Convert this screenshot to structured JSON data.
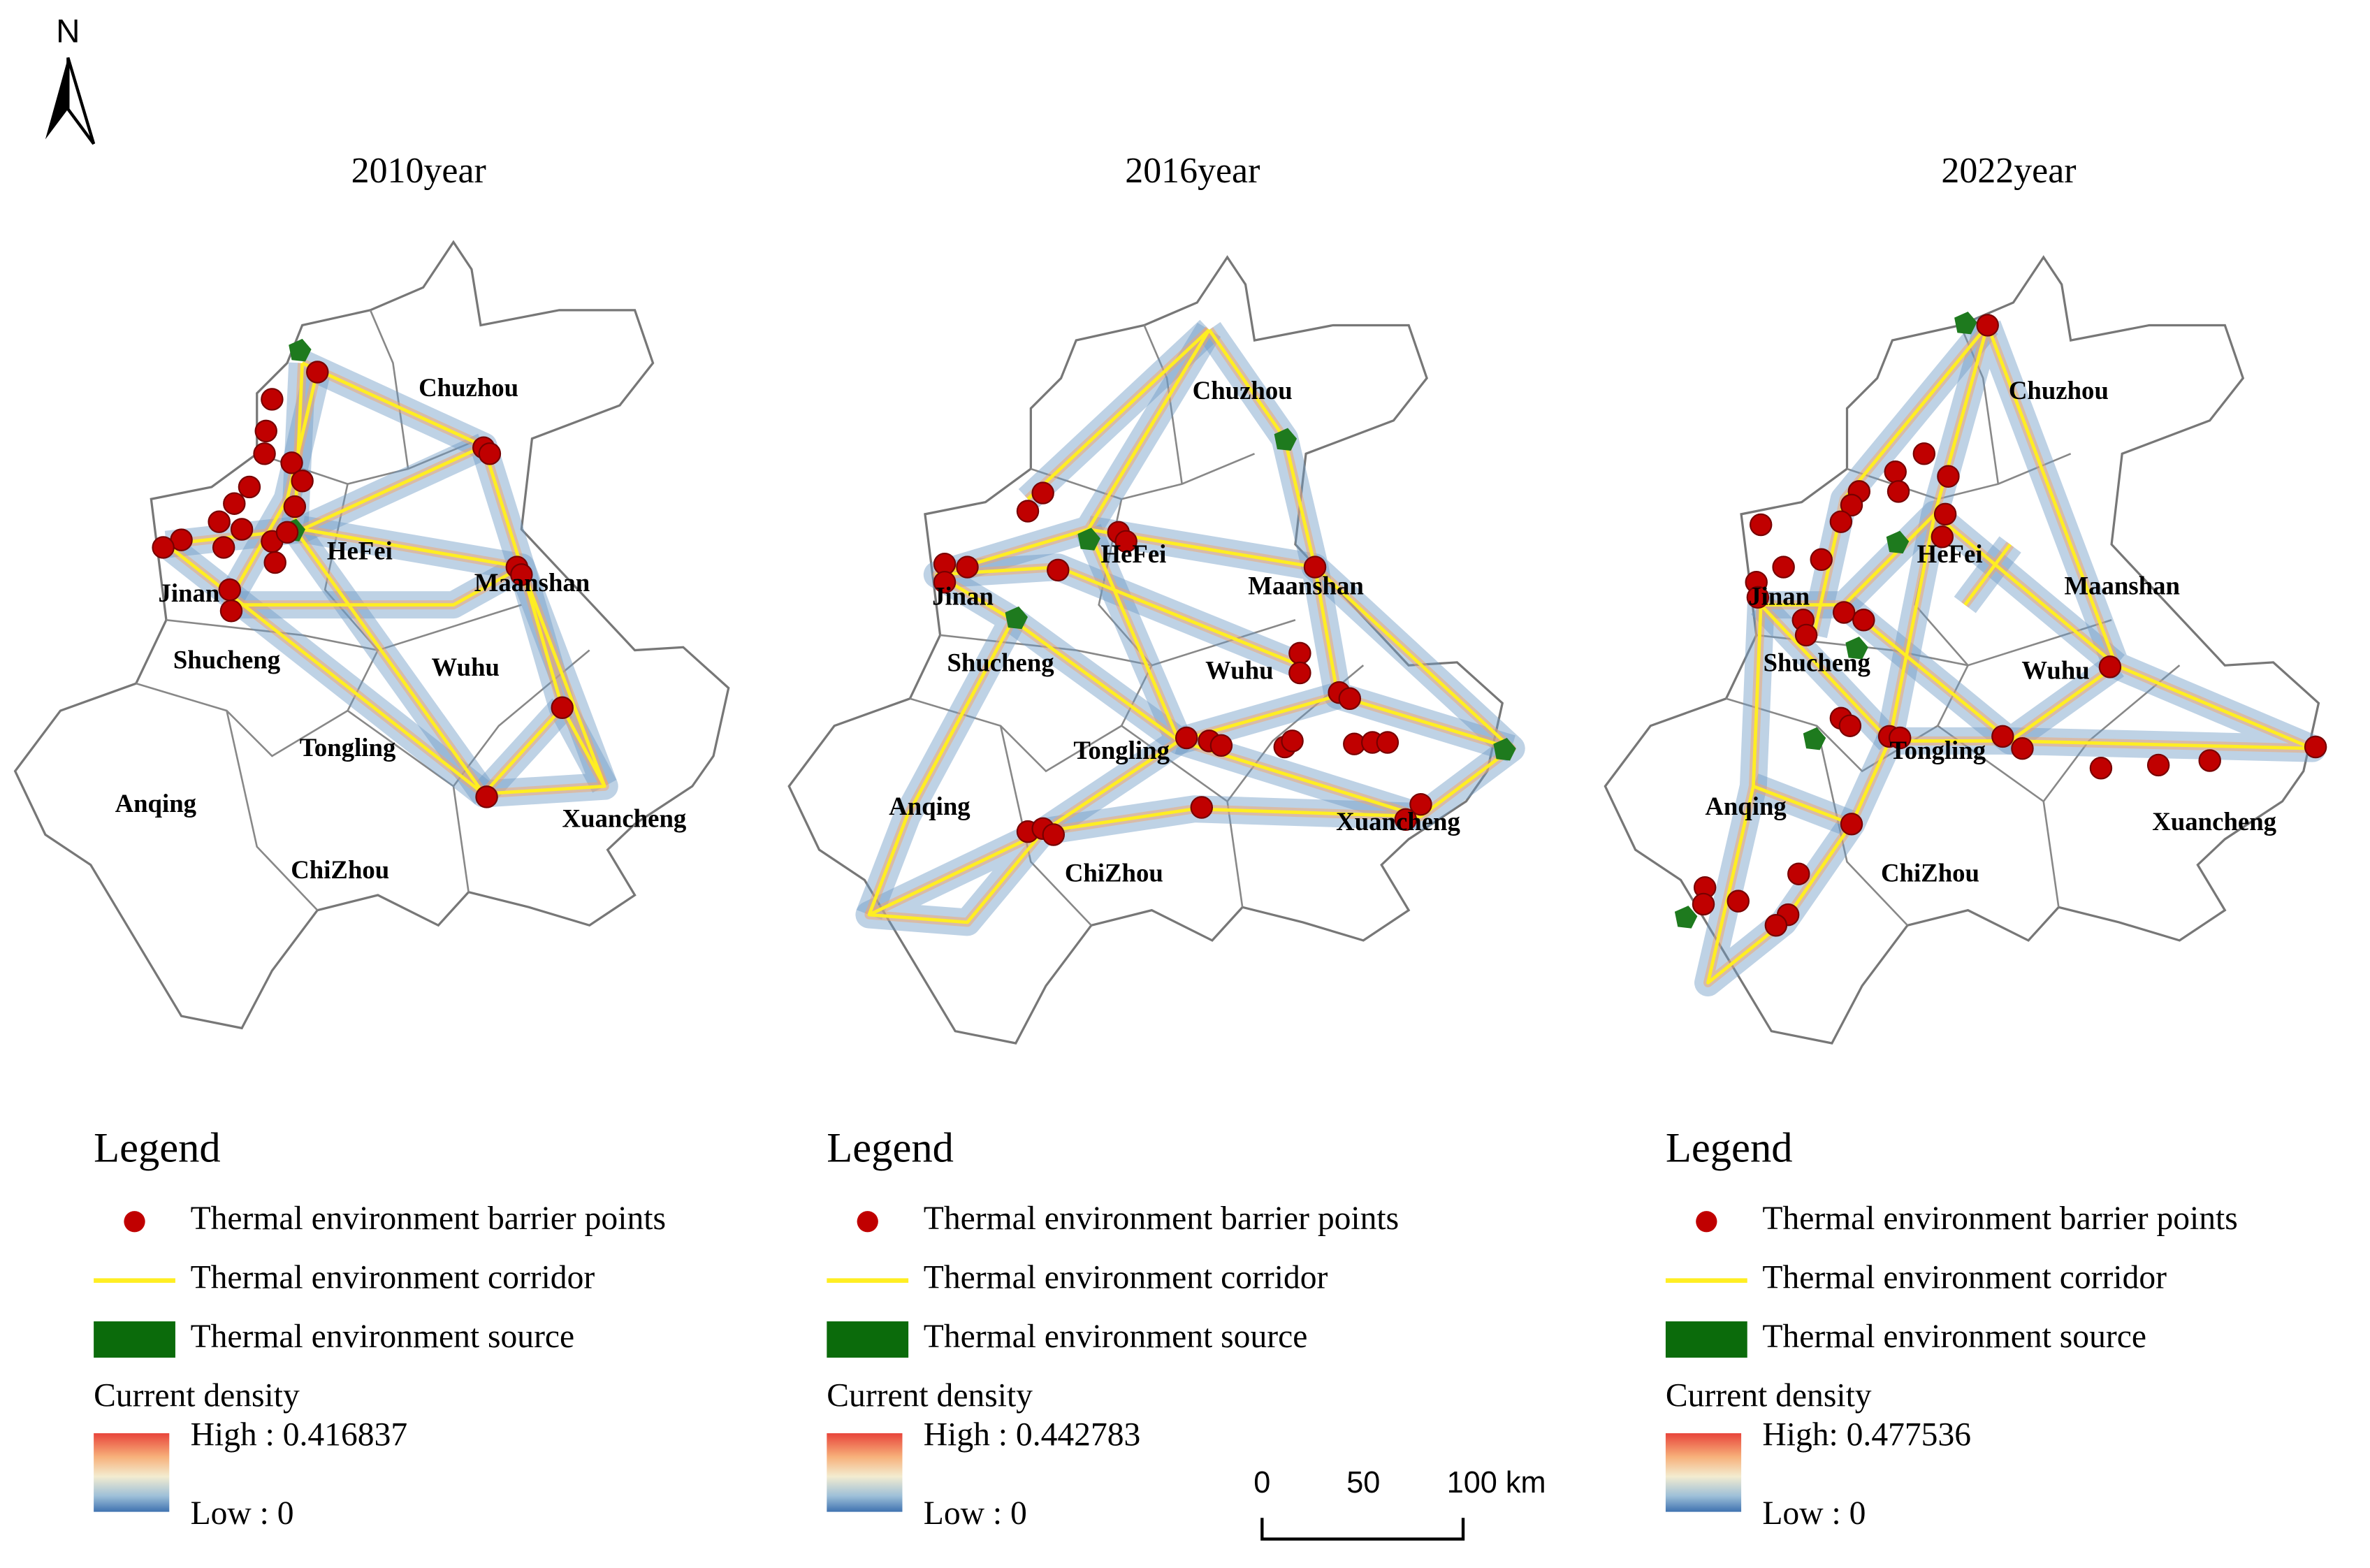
{
  "north_arrow": "N",
  "panels": [
    {
      "title": "2010year",
      "cities": [
        "Chuzhou",
        "HeFei",
        "Jinan",
        "Maanshan",
        "Shucheng",
        "Wuhu",
        "Tongling",
        "Anqing",
        "Xuancheng",
        "ChiZhou"
      ],
      "legend": {
        "title": "Legend",
        "items": [
          "Thermal environment barrier points",
          "Thermal environment corridor",
          "Thermal environment source"
        ],
        "density_title": "Current density",
        "high": "High : 0.416837",
        "low": "Low : 0"
      }
    },
    {
      "title": "2016year",
      "cities": [
        "Chuzhou",
        "HeFei",
        "Jinan",
        "Maanshan",
        "Shucheng",
        "Wuhu",
        "Tongling",
        "Anqing",
        "Xuancheng",
        "ChiZhou"
      ],
      "legend": {
        "title": "Legend",
        "items": [
          "Thermal environment barrier points",
          "Thermal environment corridor",
          "Thermal environment source"
        ],
        "density_title": "Current density",
        "high": "High : 0.442783",
        "low": "Low : 0"
      }
    },
    {
      "title": "2022year",
      "cities": [
        "Chuzhou",
        "HeFei",
        "Jinan",
        "Maanshan",
        "Shucheng",
        "Wuhu",
        "Tongling",
        "Anqing",
        "Xuancheng",
        "ChiZhou"
      ],
      "legend": {
        "title": "Legend",
        "items": [
          "Thermal environment barrier points",
          "Thermal environment corridor",
          "Thermal environment source"
        ],
        "density_title": "Current density",
        "high": "High: 0.477536",
        "low": "Low : 0"
      }
    }
  ],
  "scale_bar": [
    "0",
    "50",
    "100 km"
  ]
}
